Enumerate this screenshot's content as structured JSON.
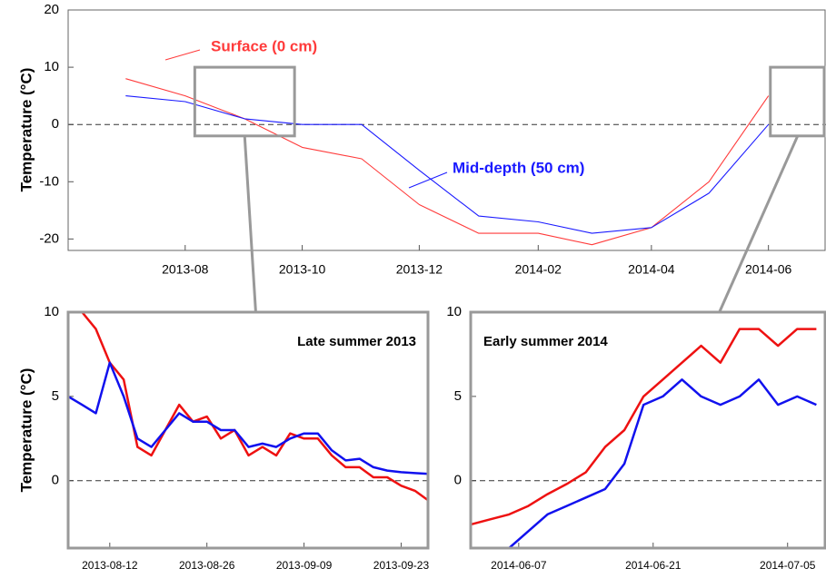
{
  "chart_data": [
    {
      "type": "line",
      "y_label": "Temperature (°C)",
      "x": [
        "2013-07",
        "2013-08",
        "2013-09",
        "2013-10",
        "2013-11",
        "2013-12",
        "2014-01",
        "2014-02",
        "2014-03",
        "2014-04",
        "2014-05",
        "2014-06"
      ],
      "series": [
        {
          "name": "Surface (0 cm)",
          "color": "#ff3b3b",
          "values": [
            8,
            5,
            1,
            -4,
            -6,
            -14,
            -19,
            -19,
            -21,
            -18,
            -10,
            5
          ]
        },
        {
          "name": "Mid-depth (50 cm)",
          "color": "#1a1aff",
          "values": [
            5,
            4,
            1,
            0,
            0,
            -8,
            -16,
            -17,
            -19,
            -18,
            -12,
            0
          ]
        }
      ],
      "xlim": [
        "2013-06",
        "2014-07"
      ],
      "xticks": [
        "2013-08",
        "2013-10",
        "2013-12",
        "2014-02",
        "2014-04",
        "2014-06"
      ],
      "ylim": [
        -22,
        20
      ],
      "yticks": [
        -20,
        -10,
        0,
        10,
        20
      ],
      "hline": 0
    },
    {
      "type": "line",
      "title": "Late summer 2013",
      "y_label": "Temperature (°C)",
      "x": [
        "2013-08-06",
        "2013-08-08",
        "2013-08-10",
        "2013-08-12",
        "2013-08-14",
        "2013-08-16",
        "2013-08-18",
        "2013-08-20",
        "2013-08-22",
        "2013-08-24",
        "2013-08-26",
        "2013-08-28",
        "2013-08-30",
        "2013-09-01",
        "2013-09-03",
        "2013-09-05",
        "2013-09-07",
        "2013-09-09",
        "2013-09-11",
        "2013-09-13",
        "2013-09-15",
        "2013-09-17",
        "2013-09-19",
        "2013-09-21",
        "2013-09-23",
        "2013-09-25",
        "2013-09-27"
      ],
      "series": [
        {
          "color": "#ee1111",
          "values": [
            10,
            10,
            9,
            7,
            6,
            2,
            1.5,
            3,
            4.5,
            3.5,
            3.8,
            2.5,
            3,
            1.5,
            2,
            1.5,
            2.8,
            2.5,
            2.5,
            1.5,
            0.8,
            0.8,
            0.2,
            0.2,
            -0.3,
            -0.6,
            -1.2
          ]
        },
        {
          "color": "#1111ee",
          "values": [
            5,
            4.5,
            4,
            7,
            5,
            2.5,
            2,
            3,
            4,
            3.5,
            3.5,
            3,
            3,
            2,
            2.2,
            2,
            2.5,
            2.8,
            2.8,
            1.8,
            1.2,
            1.3,
            0.8,
            0.6,
            0.5,
            0.45,
            0.4
          ]
        }
      ],
      "xlim": [
        "2013-08-06",
        "2013-09-27"
      ],
      "xticks": [
        "2013-08-12",
        "2013-08-26",
        "2013-09-09",
        "2013-09-23"
      ],
      "ylim": [
        -4,
        10
      ],
      "yticks": [
        0,
        5,
        10
      ],
      "hline": 0
    },
    {
      "type": "line",
      "title": "Early summer 2014",
      "x": [
        "2014-06-02",
        "2014-06-04",
        "2014-06-06",
        "2014-06-08",
        "2014-06-10",
        "2014-06-12",
        "2014-06-14",
        "2014-06-16",
        "2014-06-18",
        "2014-06-20",
        "2014-06-22",
        "2014-06-24",
        "2014-06-26",
        "2014-06-28",
        "2014-06-30",
        "2014-07-02",
        "2014-07-04",
        "2014-07-06",
        "2014-07-08"
      ],
      "series": [
        {
          "color": "#ee1111",
          "values": [
            -2.6,
            -2.3,
            -2,
            -1.5,
            -0.8,
            -0.2,
            0.5,
            2,
            3,
            5,
            6,
            7,
            8,
            7,
            9,
            9,
            8,
            9,
            9
          ]
        },
        {
          "color": "#1111ee",
          "values": [
            null,
            null,
            -4,
            -3,
            -2,
            -1.5,
            -1,
            -0.5,
            1,
            4.5,
            5,
            6,
            5,
            4.5,
            5,
            6,
            4.5,
            5,
            4.5
          ]
        }
      ],
      "xlim": [
        "2014-06-02",
        "2014-07-09"
      ],
      "xticks": [
        "2014-06-07",
        "2014-06-21",
        "2014-07-05"
      ],
      "ylim": [
        -4,
        10
      ],
      "yticks": [
        0,
        5,
        10
      ],
      "hline": 0
    }
  ]
}
